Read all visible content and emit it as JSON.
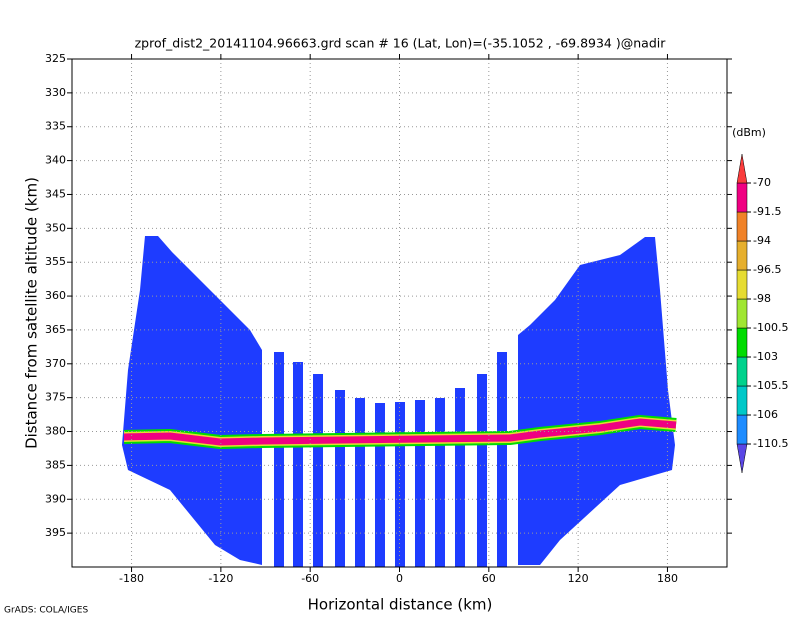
{
  "chart_data": {
    "type": "curtain",
    "title": "zprof_dist2_20141104.96663.grd  scan # 16  (Lat, Lon)=(-35.1052 , -69.8934 )@nadir",
    "x_label": "Horizontal distance (km)",
    "y_label": "Distance from satellite altitude (km)",
    "footer": "GrADS: COLA/IGES",
    "xlim": [
      -220,
      220
    ],
    "ylim": [
      325,
      400
    ],
    "y_inverted": true,
    "xticks": [
      -180,
      -120,
      -60,
      0,
      60,
      120,
      180
    ],
    "yticks": [
      325,
      330,
      335,
      340,
      345,
      350,
      355,
      360,
      365,
      370,
      375,
      380,
      385,
      390,
      395
    ],
    "grid": true,
    "colorbar": {
      "label": "(dBm)",
      "levels": [
        -110.5,
        -106,
        -105.5,
        -103,
        -100.5,
        -98,
        -96.5,
        -94,
        -91.5,
        -70
      ],
      "colors": [
        "#5a46e6",
        "#1e8cff",
        "#00c8c8",
        "#00d28c",
        "#00dc00",
        "#a0e632",
        "#e6dc32",
        "#e6af2d",
        "#f08228",
        "#f00082",
        "#fa3c3c"
      ]
    }
  }
}
